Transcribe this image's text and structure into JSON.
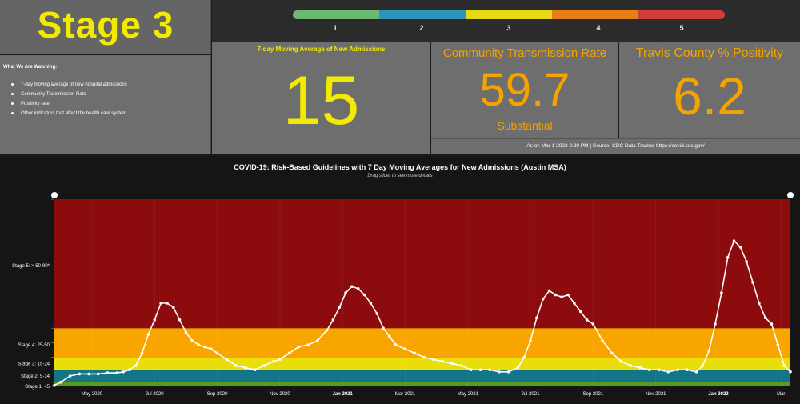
{
  "stage": {
    "title": "Stage 3"
  },
  "watching": {
    "title": "What We Are Watching:",
    "items": [
      "7-day moving average of new hospital admissions",
      "Community Transmission Rate",
      "Positivity rate",
      "Other indicators that affect the health care system"
    ]
  },
  "scale": {
    "labels": [
      "1",
      "2",
      "3",
      "4",
      "5"
    ],
    "colors": [
      "#6bb870",
      "#2e93b8",
      "#e8d916",
      "#e57f16",
      "#d33a3a"
    ]
  },
  "admissions": {
    "title": "7-day Moving Average of New Admissions",
    "value": "15"
  },
  "transmission": {
    "title": "Community Transmission Rate",
    "value": "59.7",
    "level": "Substantial"
  },
  "positivity": {
    "title": "Travis County % Positivity",
    "value": "6.2"
  },
  "source": {
    "text": "As of: Mar 1 2022 2:30 PM | Source: CDC Data Tracker  https://covid.cdc.gov/"
  },
  "chart": {
    "title": "COVID-19: Risk-Based Guidelines with 7 Day Moving Averages for New Admissions (Austin MSA)",
    "subtitle": "Drag slider to see more details"
  },
  "chart_data": {
    "type": "line",
    "title": "COVID-19: Risk-Based Guidelines with 7 Day Moving Averages for New Admissions (Austin MSA)",
    "ylim": [
      0,
      90
    ],
    "bands": [
      {
        "label": "Stage 1: <5",
        "from": 0,
        "to": 2,
        "color": "#5a9a1e"
      },
      {
        "label": "Stage 2: 5-14",
        "from": 2,
        "to": 8,
        "color": "#137588"
      },
      {
        "label": "Stage 3: 15-24",
        "from": 8,
        "to": 14,
        "color": "#e9de0a"
      },
      {
        "label": "Stage 4: 25-50",
        "from": 14,
        "to": 28,
        "color": "#f8a500"
      },
      {
        "label": "Stage 5: > 50-90*",
        "from": 28,
        "to": 90,
        "color": "#8c0c0e"
      }
    ],
    "stage_label_values": [
      0,
      5,
      11,
      20,
      58
    ],
    "x_ticks": [
      "May 2020",
      "Jul 2020",
      "Sep 2020",
      "Nov 2020",
      "Jan 2021",
      "Mar 2021",
      "May 2021",
      "Jul 2021",
      "Sep 2021",
      "Nov 2021",
      "Jan 2022",
      "Mar"
    ],
    "x_tick_months": [
      2,
      4,
      6,
      8,
      10,
      12,
      14,
      16,
      18,
      20,
      22,
      24
    ],
    "x_range_months": [
      0.8,
      24.3
    ],
    "bold_ticks": [
      "Jan 2021",
      "Jan 2022"
    ],
    "series": [
      {
        "color": "#ffffff",
        "months": [
          0.8,
          1.0,
          1.3,
          1.6,
          1.9,
          2.2,
          2.5,
          2.8,
          3.0,
          3.2,
          3.4,
          3.6,
          3.8,
          4.0,
          4.2,
          4.4,
          4.6,
          4.8,
          5.0,
          5.2,
          5.4,
          5.6,
          5.8,
          6.0,
          6.3,
          6.6,
          6.9,
          7.2,
          7.5,
          7.8,
          8.0,
          8.3,
          8.6,
          8.9,
          9.2,
          9.5,
          9.7,
          9.9,
          10.1,
          10.3,
          10.5,
          10.7,
          10.9,
          11.1,
          11.3,
          11.5,
          11.7,
          12.0,
          12.3,
          12.6,
          12.9,
          13.2,
          13.5,
          13.8,
          14.1,
          14.4,
          14.7,
          15.0,
          15.3,
          15.6,
          15.8,
          16.0,
          16.2,
          16.4,
          16.6,
          16.8,
          17.0,
          17.2,
          17.4,
          17.6,
          17.8,
          18.0,
          18.3,
          18.6,
          18.9,
          19.2,
          19.5,
          19.8,
          20.1,
          20.4,
          20.7,
          21.0,
          21.3,
          21.5,
          21.7,
          21.9,
          22.1,
          22.3,
          22.5,
          22.7,
          22.9,
          23.1,
          23.3,
          23.5,
          23.7,
          23.9,
          24.1,
          24.3
        ],
        "values": [
          0.5,
          2,
          5,
          6,
          6,
          6,
          6.5,
          6.5,
          7,
          8,
          10,
          16,
          25,
          32,
          40,
          40,
          38,
          32,
          26,
          22,
          20,
          19,
          18,
          16,
          13,
          10,
          9,
          8,
          10,
          12,
          13,
          16,
          19,
          20,
          22,
          27,
          32,
          38,
          45,
          48,
          47,
          44,
          40,
          35,
          28,
          24,
          20,
          18,
          16,
          14,
          13,
          12,
          11,
          10,
          8,
          8,
          8,
          7,
          7,
          9,
          14,
          22,
          33,
          42,
          46,
          44,
          43,
          44,
          40,
          36,
          32,
          30,
          22,
          16,
          12,
          10,
          9,
          8,
          8,
          7,
          8,
          8,
          7,
          10,
          17,
          30,
          45,
          62,
          70,
          67,
          60,
          50,
          40,
          33,
          30,
          20,
          10,
          7
        ]
      }
    ]
  }
}
